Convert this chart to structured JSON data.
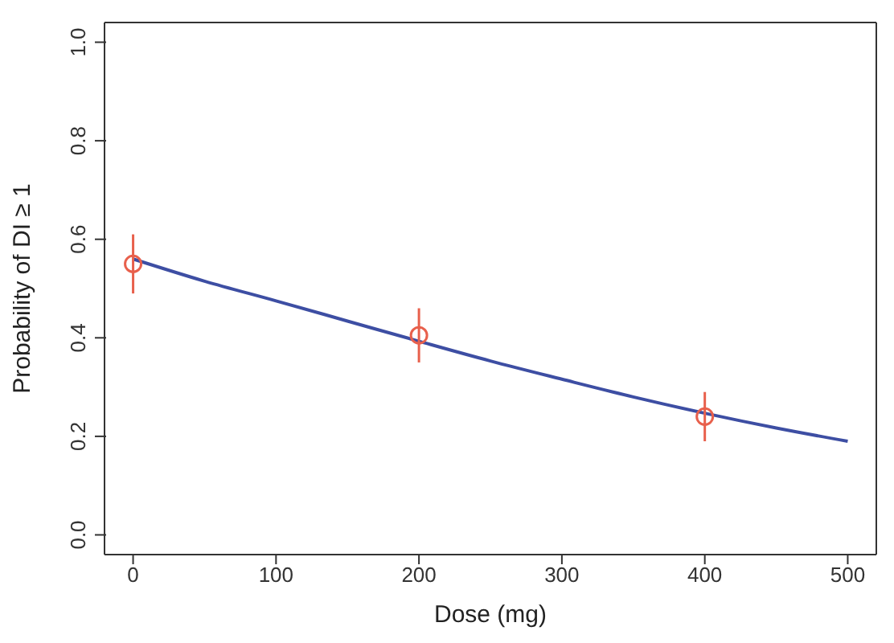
{
  "chart_data": {
    "type": "line",
    "xlabel": "Dose (mg)",
    "ylabel": "Probability of DI ≥ 1",
    "xlim": [
      -20,
      520
    ],
    "xticks": [
      0,
      100,
      200,
      300,
      400,
      500
    ],
    "ylim": [
      -0.04,
      1.04
    ],
    "yticks": [
      {
        "value": 0,
        "label": "0.0"
      },
      0.2,
      0.4,
      0.6,
      0.8,
      {
        "value": 1,
        "label": "1.0"
      }
    ],
    "series": [
      {
        "color": "#3d4ea3",
        "marker": "none",
        "line_style": "solid",
        "x": [
          0,
          50,
          100,
          150,
          200,
          250,
          300,
          350,
          400,
          450,
          500
        ],
        "values": [
          0.56,
          0.515,
          0.475,
          0.434,
          0.393,
          0.353,
          0.316,
          0.28,
          0.247,
          0.217,
          0.19
        ]
      },
      {
        "type": "scatter",
        "color": "#e8604c",
        "marker": "circle",
        "x": [
          0,
          200,
          400
        ],
        "values": [
          0.55,
          0.405,
          0.24
        ],
        "errors": [
          [
            0.49,
            0.61
          ],
          [
            0.35,
            0.46
          ],
          [
            0.19,
            0.29
          ]
        ]
      }
    ]
  }
}
